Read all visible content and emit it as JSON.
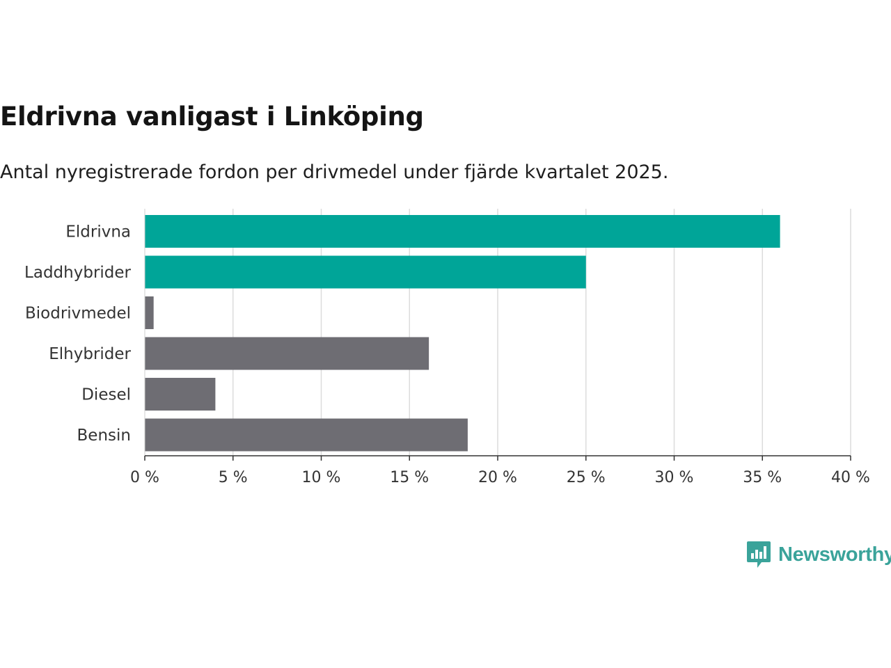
{
  "title": "Eldrivna vanligast i Linköping",
  "subtitle": "Antal nyregistrerade fordon per drivmedel under fjärde kvartalet 2025.",
  "brand": {
    "name": "Newsworthy",
    "icon": "newsworthy-logo-icon",
    "color": "#3aa39a"
  },
  "chart_data": {
    "type": "bar",
    "orientation": "horizontal",
    "title": "Eldrivna vanligast i Linköping",
    "subtitle": "Antal nyregistrerade fordon per drivmedel under fjärde kvartalet 2025.",
    "xlabel": "",
    "ylabel": "",
    "xlim": [
      0,
      40
    ],
    "x_ticks": [
      0,
      5,
      10,
      15,
      20,
      25,
      30,
      35,
      40
    ],
    "x_tick_labels": [
      "0 %",
      "5 %",
      "10 %",
      "15 %",
      "20 %",
      "25 %",
      "30 %",
      "35 %",
      "40 %"
    ],
    "grid": true,
    "legend": "none",
    "categories": [
      "Eldrivna",
      "Laddhybrider",
      "Biodrivmedel",
      "Elhybrider",
      "Diesel",
      "Bensin"
    ],
    "values": [
      36.0,
      25.0,
      0.5,
      16.1,
      4.0,
      18.3
    ],
    "bar_colors": [
      "#00a598",
      "#00a598",
      "#6e6d73",
      "#6e6d73",
      "#6e6d73",
      "#6e6d73"
    ]
  }
}
